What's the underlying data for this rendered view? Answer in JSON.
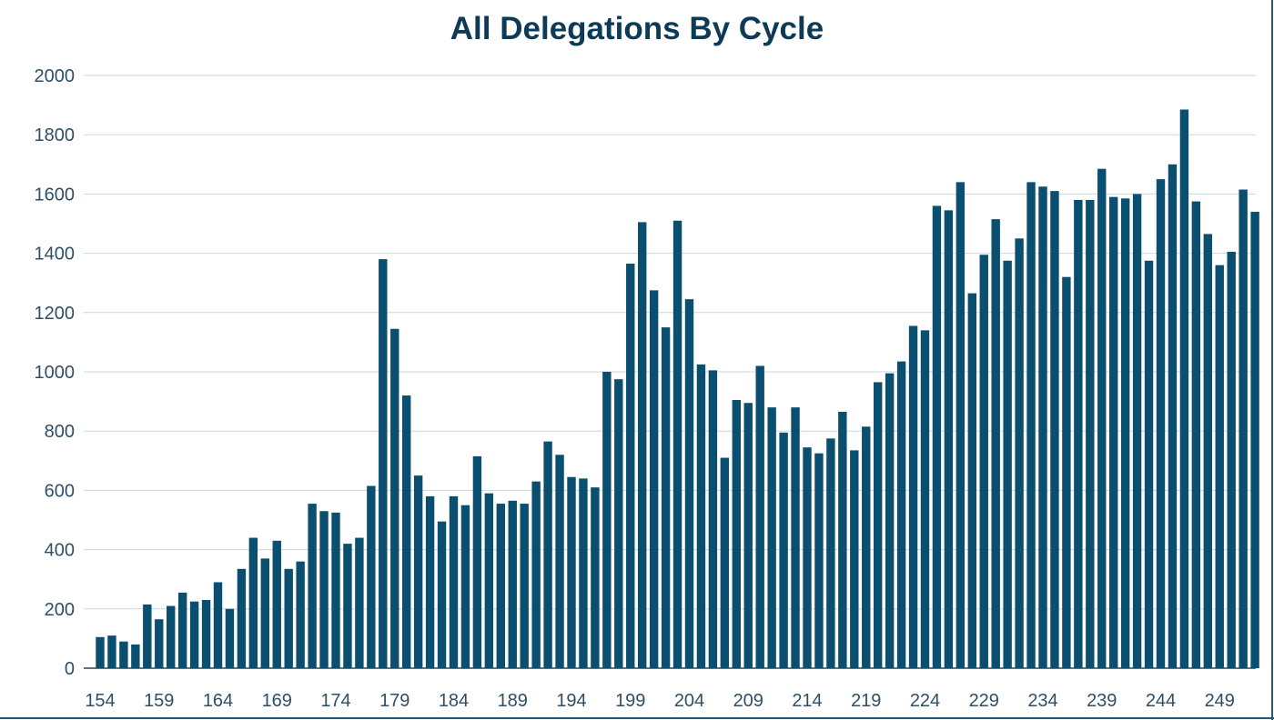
{
  "chart_data": {
    "type": "bar",
    "title": "All Delegations By Cycle",
    "xlabel": "",
    "ylabel": "",
    "ylim": [
      0,
      2000
    ],
    "yticks": [
      0,
      200,
      400,
      600,
      800,
      1000,
      1200,
      1400,
      1600,
      1800,
      2000
    ],
    "x_tick_labels": [
      "154",
      "159",
      "164",
      "169",
      "174",
      "179",
      "184",
      "189",
      "194",
      "199",
      "204",
      "209",
      "214",
      "219",
      "224",
      "229",
      "234",
      "239",
      "244",
      "249"
    ],
    "grid": true,
    "legend": "none",
    "bar_color": "#0a4f70",
    "categories": [
      154,
      155,
      156,
      157,
      158,
      159,
      160,
      161,
      162,
      163,
      164,
      165,
      166,
      167,
      168,
      169,
      170,
      171,
      172,
      173,
      174,
      175,
      176,
      177,
      178,
      179,
      180,
      181,
      182,
      183,
      184,
      185,
      186,
      187,
      188,
      189,
      190,
      191,
      192,
      193,
      194,
      195,
      196,
      197,
      198,
      199,
      200,
      201,
      202,
      203,
      204,
      205,
      206,
      207,
      208,
      209,
      210,
      211,
      212,
      213,
      214,
      215,
      216,
      217,
      218,
      219,
      220,
      221,
      222,
      223,
      224,
      225,
      226,
      227,
      228,
      229,
      230,
      231,
      232,
      233,
      234,
      235,
      236,
      237,
      238,
      239,
      240,
      241,
      242,
      243,
      244,
      245,
      246,
      247,
      248,
      249,
      250,
      251,
      252
    ],
    "values": [
      105,
      110,
      90,
      80,
      215,
      165,
      210,
      255,
      225,
      230,
      290,
      200,
      335,
      440,
      370,
      430,
      335,
      360,
      555,
      530,
      525,
      420,
      440,
      615,
      1380,
      1145,
      920,
      650,
      580,
      495,
      580,
      550,
      715,
      590,
      555,
      565,
      555,
      630,
      765,
      720,
      645,
      640,
      610,
      1000,
      975,
      1365,
      1505,
      1275,
      1150,
      1510,
      1245,
      1025,
      1005,
      710,
      905,
      895,
      1020,
      880,
      795,
      880,
      745,
      725,
      775,
      865,
      735,
      815,
      965,
      995,
      1035,
      1155,
      1140,
      1560,
      1545,
      1640,
      1265,
      1395,
      1515,
      1375,
      1450,
      1640,
      1625,
      1610,
      1320,
      1580,
      1580,
      1685,
      1590,
      1585,
      1600,
      1375,
      1650,
      1700,
      1885,
      1575,
      1465,
      1360,
      1405,
      1615,
      1540
    ]
  }
}
